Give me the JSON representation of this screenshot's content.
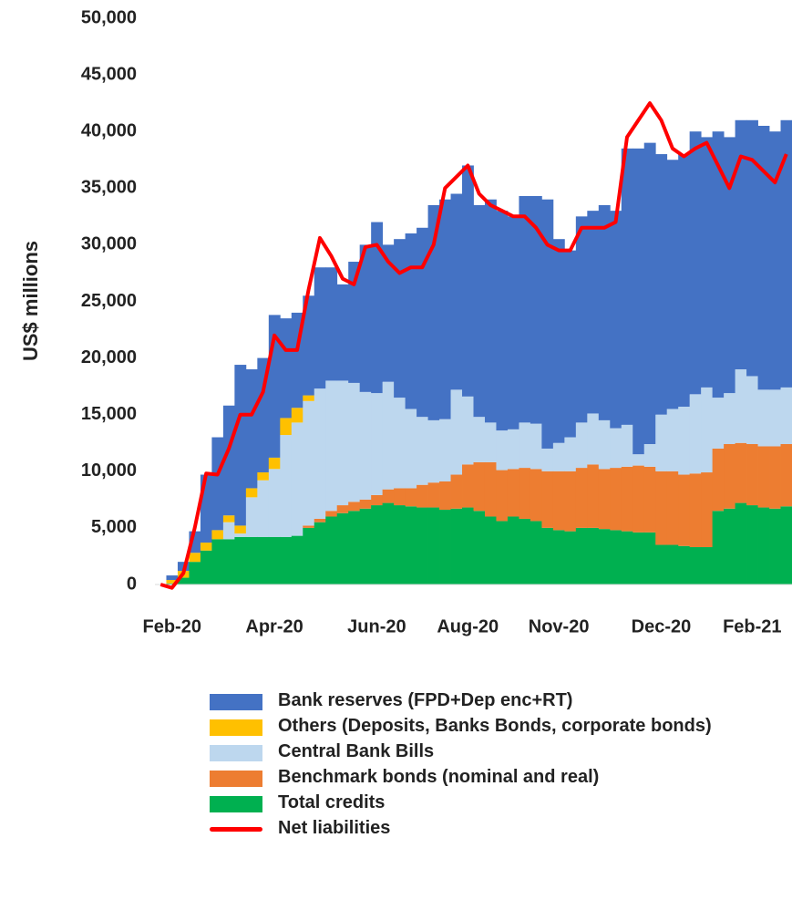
{
  "chart_data": {
    "type": "bar",
    "stacked": true,
    "ylabel": "US$ millions",
    "categories": [
      null,
      "Feb-20",
      null,
      null,
      null,
      null,
      null,
      null,
      null,
      null,
      "Apr-20",
      null,
      null,
      null,
      null,
      null,
      null,
      null,
      null,
      "Jun-20",
      null,
      null,
      null,
      null,
      null,
      null,
      null,
      "Aug-20",
      null,
      null,
      null,
      null,
      null,
      null,
      null,
      "Nov-20",
      null,
      null,
      null,
      null,
      null,
      null,
      null,
      null,
      "Dec-20",
      null,
      null,
      null,
      null,
      null,
      null,
      null,
      "Feb-21",
      null,
      null,
      null
    ],
    "ylim": [
      0,
      50000
    ],
    "yticks": [
      0,
      {
        "value": 5000,
        "label": "5,000"
      },
      {
        "value": 10000,
        "label": "10,000"
      },
      {
        "value": 15000,
        "label": "15,000"
      },
      {
        "value": 20000,
        "label": "20,000"
      },
      {
        "value": 25000,
        "label": "25,000"
      },
      {
        "value": 30000,
        "label": "30,000"
      },
      {
        "value": 35000,
        "label": "35,000"
      },
      {
        "value": 40000,
        "label": "40,000"
      },
      {
        "value": 45000,
        "label": "45,000"
      },
      {
        "value": 50000,
        "label": "50,000"
      }
    ],
    "series": [
      {
        "name": "Bank reserves (FPD+Dep enc+RT)",
        "color": "#4472c4",
        "values": [
          0,
          400,
          800,
          1900,
          6000,
          8200,
          9700,
          14200,
          10500,
          10100,
          12600,
          8800,
          8400,
          8800,
          10700,
          10000,
          8500,
          10700,
          13000,
          15100,
          12100,
          14000,
          15500,
          16700,
          19000,
          19400,
          17300,
          20400,
          18700,
          19700,
          19400,
          18800,
          20000,
          20100,
          22000,
          18000,
          16500,
          18200,
          17900,
          19000,
          19200,
          24400,
          27000,
          26600,
          23000,
          22000,
          22300,
          23200,
          22100,
          23500,
          22600,
          22000,
          22600,
          23300,
          22800,
          23600
        ]
      },
      {
        "name": "Others (Deposits, Banks Bonds, corporate bonds)",
        "color": "#ffc000",
        "values": [
          0,
          300,
          600,
          800,
          700,
          800,
          600,
          700,
          800,
          700,
          1000,
          1500,
          1300,
          500,
          0,
          0,
          0,
          0,
          0,
          0,
          0,
          0,
          0,
          0,
          0,
          0,
          0,
          0,
          0,
          0,
          0,
          0,
          0,
          0,
          0,
          0,
          0,
          0,
          0,
          0,
          0,
          0,
          0,
          0,
          0,
          0,
          0,
          0,
          0,
          0,
          0,
          0,
          0,
          0,
          0,
          0
        ]
      },
      {
        "name": "Central Bank Bills",
        "color": "#bdd7ee",
        "values": [
          0,
          0,
          0,
          0,
          0,
          0,
          1500,
          300,
          3500,
          5000,
          6000,
          9000,
          10000,
          11000,
          11500,
          11500,
          11000,
          10500,
          9500,
          9000,
          9500,
          8000,
          7000,
          6000,
          5500,
          5500,
          7500,
          6000,
          4000,
          3500,
          3500,
          3500,
          4000,
          4000,
          2000,
          2500,
          3000,
          4000,
          4500,
          4300,
          3500,
          3700,
          1000,
          2000,
          5000,
          5500,
          6000,
          7000,
          7500,
          4500,
          4500,
          6500,
          6000,
          5000,
          5000,
          5000
        ]
      },
      {
        "name": "Benchmark bonds (nominal and real)",
        "color": "#ed7d31",
        "values": [
          0,
          0,
          0,
          0,
          0,
          0,
          0,
          0,
          0,
          0,
          0,
          0,
          0,
          200,
          300,
          500,
          700,
          800,
          800,
          900,
          1200,
          1500,
          1600,
          2000,
          2200,
          2500,
          3000,
          3800,
          4300,
          4800,
          4500,
          4200,
          4500,
          4600,
          5000,
          5200,
          5300,
          5300,
          5600,
          5300,
          5500,
          5700,
          5900,
          5800,
          6500,
          6500,
          6300,
          6500,
          6600,
          5500,
          5700,
          5300,
          5400,
          5400,
          5500,
          5500
        ]
      },
      {
        "name": "Total credits",
        "color": "#00b050",
        "values": [
          0,
          100,
          600,
          2000,
          3000,
          4000,
          4000,
          4200,
          4200,
          4200,
          4200,
          4200,
          4300,
          5000,
          5500,
          6000,
          6300,
          6500,
          6700,
          7000,
          7200,
          7000,
          6900,
          6800,
          6800,
          6600,
          6700,
          6800,
          6500,
          6000,
          5600,
          6000,
          5800,
          5600,
          5000,
          4800,
          4700,
          5000,
          5000,
          4900,
          4800,
          4700,
          4600,
          4600,
          3500,
          3500,
          3400,
          3300,
          3300,
          6500,
          6700,
          7200,
          7000,
          6800,
          6700,
          6900
        ]
      },
      {
        "name": "Net liabilities",
        "type": "line",
        "color": "#ff0000",
        "values": [
          0,
          -300,
          1000,
          5000,
          9800,
          9700,
          12000,
          15000,
          15000,
          17000,
          22000,
          20700,
          20700,
          26000,
          30600,
          29000,
          27000,
          26500,
          29800,
          30000,
          28500,
          27500,
          28000,
          28000,
          30000,
          35000,
          36000,
          37000,
          34500,
          33500,
          33000,
          32500,
          32500,
          31500,
          30000,
          29500,
          29500,
          31500,
          31500,
          31500,
          32000,
          39500,
          41000,
          42500,
          41000,
          38500,
          37800,
          38500,
          39000,
          37000,
          35000,
          37800,
          37500,
          36500,
          35500,
          38000
        ]
      }
    ]
  }
}
